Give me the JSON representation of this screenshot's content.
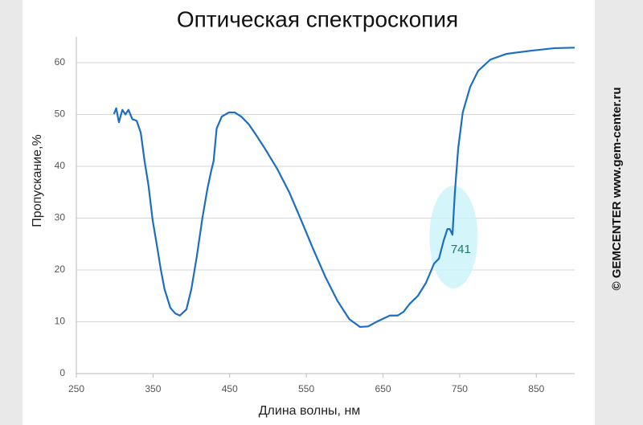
{
  "chart_data": {
    "type": "line",
    "title": "Оптическая спектроскопия",
    "xlabel": "Длина волны, нм",
    "ylabel": "Пропускание,%",
    "side_text": "© GEMCENTER www.gem-center.ru",
    "x": [
      299,
      302,
      305.5,
      310,
      314,
      318,
      323,
      328.6,
      334,
      339,
      344,
      349.6,
      355,
      360,
      365,
      372.6,
      379,
      385,
      393.6,
      400,
      407,
      414.6,
      421,
      426,
      429,
      433,
      439.7,
      449,
      456.5,
      465,
      475,
      486,
      496,
      512,
      528,
      543.5,
      559,
      575,
      590.7,
      606,
      620,
      630.5,
      643,
      659,
      669,
      676.6,
      685,
      695.5,
      706,
      716.5,
      723,
      729,
      734,
      737,
      740.6,
      743.7,
      748,
      754,
      763.6,
      774,
      790,
      811,
      842.6,
      873.7,
      900
    ],
    "values": [
      50.1,
      51.2,
      48.5,
      50.9,
      50,
      50.9,
      49.1,
      48.8,
      46.5,
      41,
      36.4,
      29.5,
      24.8,
      20.2,
      16.3,
      12.7,
      11.6,
      11.2,
      12.4,
      16.3,
      22.5,
      30.2,
      35.7,
      39.2,
      41,
      47.3,
      49.6,
      50.4,
      50.4,
      49.6,
      48.1,
      45.7,
      43.4,
      39.5,
      34.9,
      29.5,
      24,
      18.6,
      14,
      10.5,
      9,
      9.1,
      10.1,
      11.2,
      11.2,
      11.9,
      13.5,
      15,
      17.5,
      21.2,
      22.2,
      25.6,
      27.9,
      27.9,
      26.8,
      34.9,
      43.4,
      50.4,
      55.3,
      58.4,
      60.6,
      61.7,
      62.3,
      62.8,
      62.9
    ],
    "color": "#1b6ec2",
    "annotations": [
      {
        "x": 741
      }
    ],
    "xlim": [
      250,
      900
    ],
    "xticks": [
      250,
      350,
      450,
      550,
      650,
      750,
      850
    ],
    "ylim": [
      0,
      65
    ],
    "yticks": [
      0,
      10,
      20,
      30,
      40,
      50,
      60
    ],
    "grid": true
  }
}
